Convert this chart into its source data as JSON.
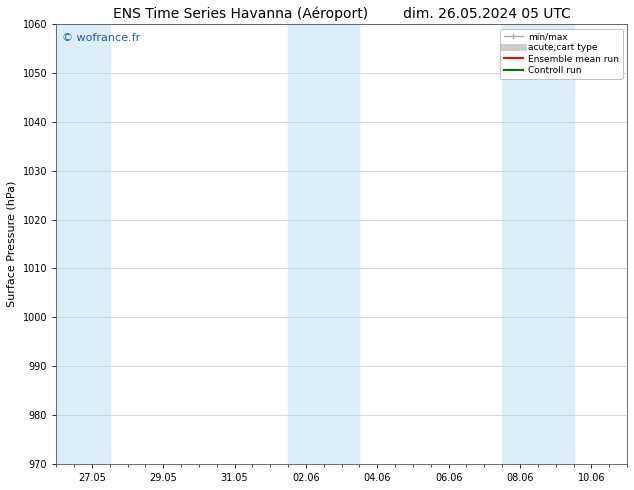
{
  "title_left": "ENS Time Series Havanna (Aéroport)",
  "title_right": "dim. 26.05.2024 05 UTC",
  "ylabel": "Surface Pressure (hPa)",
  "ylim": [
    970,
    1060
  ],
  "yticks": [
    970,
    980,
    990,
    1000,
    1010,
    1020,
    1030,
    1040,
    1050,
    1060
  ],
  "xtick_labels": [
    "27.05",
    "29.05",
    "31.05",
    "02.06",
    "04.06",
    "06.06",
    "08.06",
    "10.06"
  ],
  "xtick_positions": [
    1,
    3,
    5,
    7,
    9,
    11,
    13,
    15
  ],
  "xlim": [
    0,
    16
  ],
  "watermark": "© wofrance.fr",
  "watermark_color": "#1a5fb4",
  "shaded_bands": [
    {
      "x_start": 0.0,
      "x_end": 1.5,
      "color": "#dceef8"
    },
    {
      "x_start": 6.5,
      "x_end": 8.5,
      "color": "#dceef8"
    },
    {
      "x_start": 12.5,
      "x_end": 14.5,
      "color": "#dceef8"
    }
  ],
  "legend_items": [
    {
      "label": "min/max",
      "color": "#aaaaaa",
      "lw": 1.0
    },
    {
      "label": "acute;cart type",
      "color": "#cccccc",
      "lw": 5
    },
    {
      "label": "Ensemble mean run",
      "color": "#ff0000",
      "lw": 1.5
    },
    {
      "label": "Controll run",
      "color": "#007700",
      "lw": 1.5
    }
  ],
  "bg_color": "#ffffff",
  "plot_bg_color": "#ffffff",
  "grid_color": "#c8c8c8",
  "title_fontsize": 10,
  "tick_fontsize": 7,
  "ylabel_fontsize": 8,
  "watermark_fontsize": 8
}
